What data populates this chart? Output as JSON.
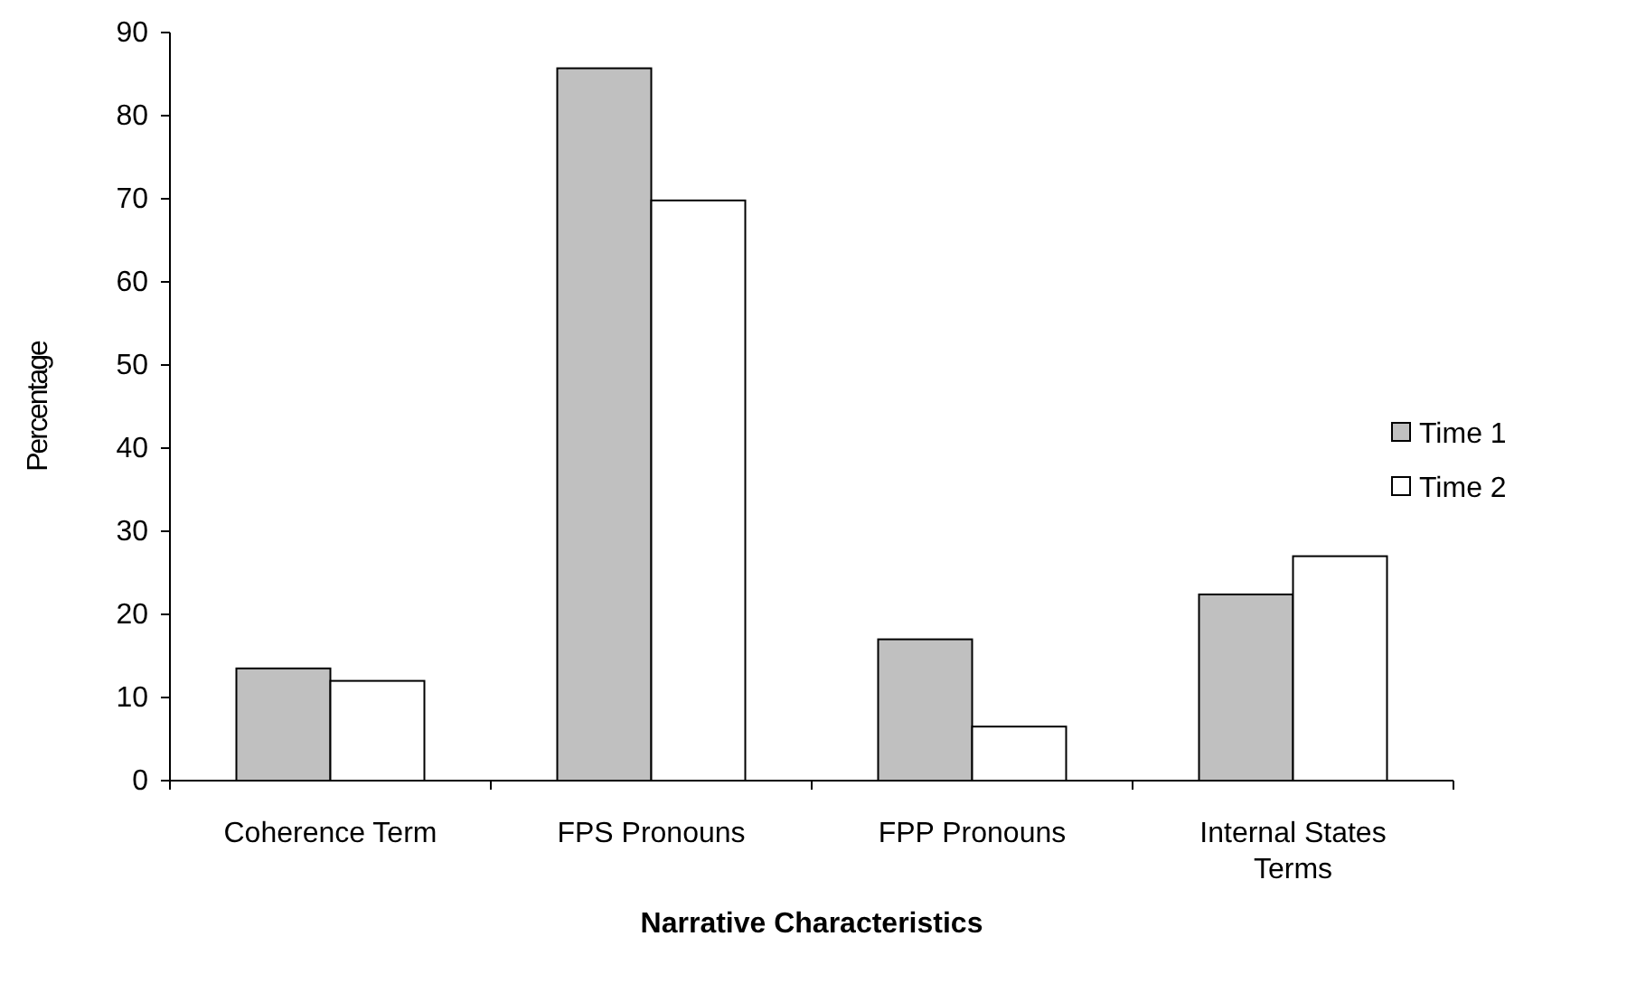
{
  "chart_data": {
    "type": "bar",
    "xlabel": "Narrative Characteristics",
    "ylabel": "Percentage",
    "categories": [
      "Coherence Term",
      "FPS Pronouns",
      "FPP Pronouns",
      "Internal States Terms"
    ],
    "series": [
      {
        "name": "Time 1",
        "color": "#c0c0c0",
        "values": [
          13.5,
          85.7,
          17.0,
          22.4
        ]
      },
      {
        "name": "Time 2",
        "color": "#ffffff",
        "values": [
          12.0,
          69.8,
          6.5,
          27.0
        ]
      }
    ],
    "ylim": [
      0,
      90
    ],
    "yticks": [
      0,
      10,
      20,
      30,
      40,
      50,
      60,
      70,
      80,
      90
    ],
    "grid": false,
    "legend": "right"
  }
}
